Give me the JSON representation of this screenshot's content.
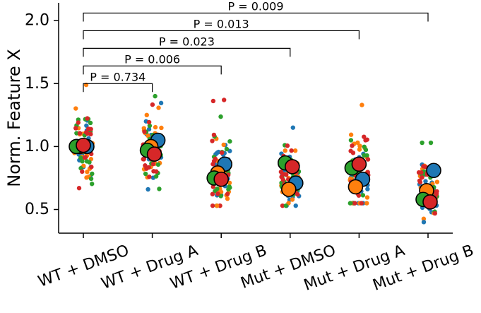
{
  "colors": {
    "rep1": "#1f77b4",
    "rep2": "#ff7f0e",
    "rep3": "#2ca02c",
    "rep4": "#d62728"
  },
  "chart_data": {
    "type": "scatter",
    "subtype": "superplot (strip plot with replicate means)",
    "title": "",
    "xlabel": "",
    "ylabel": "Norm. Feature X",
    "ylim": [
      0.3,
      2.15
    ],
    "yticks": [
      0.5,
      1.0,
      1.5,
      2.0
    ],
    "ytick_labels": [
      "0.5",
      "1.0",
      "1.5",
      "2.0"
    ],
    "grid": false,
    "legend": "none",
    "categories": [
      "WT + DMSO",
      "WT + Drug A",
      "WT + Drug B",
      "Mut + DMSO",
      "Mut + Drug A",
      "Mut + Drug B"
    ],
    "replicates": [
      {
        "color": "#1f77b4",
        "means": [
          1.0,
          1.05,
          0.86,
          0.71,
          0.74,
          0.81
        ]
      },
      {
        "color": "#ff7f0e",
        "means": [
          1.0,
          1.0,
          0.79,
          0.66,
          0.68,
          0.65
        ]
      },
      {
        "color": "#2ca02c",
        "means": [
          1.0,
          0.97,
          0.75,
          0.87,
          0.83,
          0.58
        ]
      },
      {
        "color": "#d62728",
        "means": [
          1.01,
          0.94,
          0.74,
          0.84,
          0.86,
          0.56
        ]
      }
    ],
    "cell_spread": [
      {
        "center": 1.0,
        "min": 0.67,
        "max": 1.49
      },
      {
        "center": 0.99,
        "min": 0.66,
        "max": 1.4
      },
      {
        "center": 0.78,
        "min": 0.53,
        "max": 1.37
      },
      {
        "center": 0.78,
        "min": 0.53,
        "max": 1.15
      },
      {
        "center": 0.8,
        "min": 0.55,
        "max": 1.33
      },
      {
        "center": 0.66,
        "min": 0.4,
        "max": 1.03
      }
    ],
    "comparisons": [
      {
        "from": "WT + DMSO",
        "to": "WT + Drug A",
        "label": "P = 0.734",
        "y": 1.5
      },
      {
        "from": "WT + DMSO",
        "to": "WT + Drug B",
        "label": "P = 0.006",
        "y": 1.64
      },
      {
        "from": "WT + DMSO",
        "to": "Mut + DMSO",
        "label": "P = 0.023",
        "y": 1.78
      },
      {
        "from": "WT + DMSO",
        "to": "Mut + Drug A",
        "label": "P = 0.013",
        "y": 1.92
      },
      {
        "from": "WT + DMSO",
        "to": "Mut + Drug B",
        "label": "P = 0.009",
        "y": 2.06
      }
    ]
  }
}
